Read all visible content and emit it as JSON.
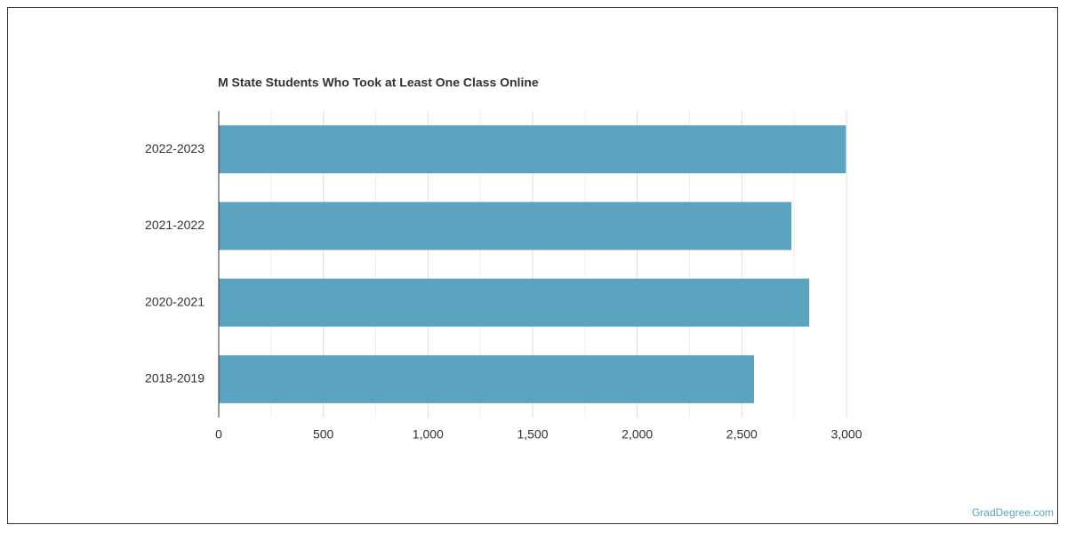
{
  "chart_data": {
    "type": "bar",
    "orientation": "horizontal",
    "title": "M State Students Who Took at Least One Class Online",
    "categories": [
      "2022-2023",
      "2021-2022",
      "2020-2021",
      "2018-2019"
    ],
    "values": [
      2997,
      2737,
      2822,
      2558
    ],
    "color": "#5ba3bf",
    "xlim": [
      0,
      3000
    ],
    "xticks": [
      0,
      500,
      {
        "value": 1000,
        "label": "1,000"
      },
      {
        "value": 1500,
        "label": "1,500"
      },
      {
        "value": 2000,
        "label": "2,000"
      },
      {
        "value": 2500,
        "label": "2,500"
      },
      {
        "value": 3000,
        "label": "3,000"
      }
    ],
    "grid": true,
    "source": "GradDegree.com"
  }
}
